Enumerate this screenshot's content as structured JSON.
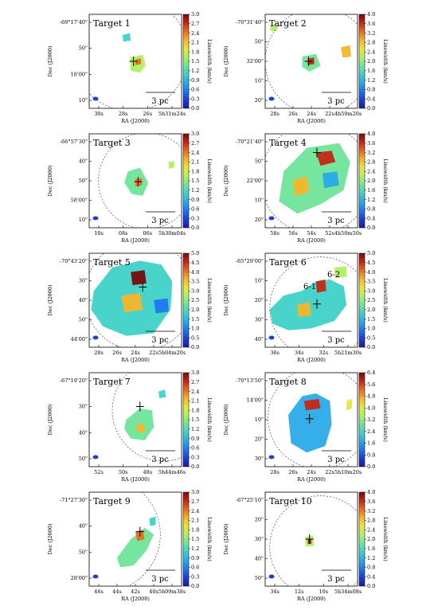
{
  "cbar_colors": [
    "#1b1b9c",
    "#1c3fd6",
    "#1e78ee",
    "#2aaae8",
    "#3fd2c8",
    "#6fe59a",
    "#aef066",
    "#e6e83c",
    "#f5b52a",
    "#ea6a20",
    "#c52616",
    "#7a0b0b"
  ],
  "panels": [
    {
      "title": "Target 1",
      "scale": "3 pc",
      "xlabel": "RA (J2000)",
      "ylabel": "Dec (J2000)",
      "cbar_label": "Linewidth (km/s)",
      "cbar_ticks": [
        "3.0",
        "2.7",
        "2.4",
        "2.1",
        "1.8",
        "1.5",
        "1.2",
        "0.9",
        "0.6",
        "0.3",
        "0.0"
      ],
      "xticks": [
        "30s",
        "28s",
        "26s",
        "5h31m24s"
      ],
      "yticks": [
        "-69°17'40\"",
        "50\"",
        "18'00\"",
        "10\""
      ]
    },
    {
      "title": "Target 2",
      "scale": "3 pc",
      "xlabel": "RA (J2000)",
      "ylabel": "Dec (J2000)",
      "cbar_label": "Linewidth (km/s)",
      "cbar_ticks": [
        "4.0",
        "3.6",
        "3.2",
        "2.8",
        "2.4",
        "2.0",
        "1.6",
        "1.2",
        "0.8",
        "0.4",
        "0.0"
      ],
      "xticks": [
        "28s",
        "26s",
        "24s",
        "22s",
        "4h59m20s"
      ],
      "yticks": [
        "-70°31'40\"",
        "50\"",
        "32'00\"",
        "10\"",
        "20\""
      ]
    },
    {
      "title": "Target 3",
      "scale": "3 pc",
      "xlabel": "RA (J2000)",
      "ylabel": "Dec (J2000)",
      "cbar_label": "Linewidth (km/s)",
      "cbar_ticks": [
        "3.0",
        "2.7",
        "2.4",
        "2.1",
        "1.8",
        "1.5",
        "1.2",
        "0.9",
        "0.6",
        "0.3",
        "0.0"
      ],
      "xticks": [
        "10s",
        "08s",
        "06s",
        "5h30m04s"
      ],
      "yticks": [
        "-66°57'30\"",
        "40\"",
        "50\"",
        "58'00\"",
        "10\""
      ]
    },
    {
      "title": "Target 4",
      "scale": "3 pc",
      "xlabel": "RA (J2000)",
      "ylabel": "Dec (J2000)",
      "cbar_label": "Linewidth (km/s)",
      "cbar_ticks": [
        "4.0",
        "3.6",
        "3.2",
        "2.8",
        "2.4",
        "2.0",
        "1.6",
        "1.2",
        "0.8",
        "0.4",
        "0.0"
      ],
      "xticks": [
        "58s",
        "56s",
        "54s",
        "52s",
        "4h50m50s"
      ],
      "yticks": [
        "-70°21'40\"",
        "50\"",
        "22'00\"",
        "10\"",
        "20\""
      ]
    },
    {
      "title": "Target 5",
      "scale": "3 pc",
      "xlabel": "RA (J2000)",
      "ylabel": "Dec (J2000)",
      "cbar_label": "Linewidth (km/s)",
      "cbar_ticks": [
        "5.0",
        "4.5",
        "4.0",
        "3.5",
        "3.0",
        "2.5",
        "2.0",
        "1.5",
        "1.0",
        "0.5",
        "0.0"
      ],
      "xticks": [
        "28s",
        "26s",
        "24s",
        "22s",
        "5h04m20s"
      ],
      "yticks": [
        "-70°43'20\"",
        "30\"",
        "40\"",
        "50\"",
        "44'00\""
      ]
    },
    {
      "title": "Target 6",
      "scale": "3 pc",
      "xlabel": "RA (J2000)",
      "ylabel": "Dec (J2000)",
      "cbar_label": "Linewidth (km/s)",
      "cbar_ticks": [
        "5.0",
        "4.5",
        "4.0",
        "3.5",
        "3.0",
        "2.5",
        "2.0",
        "1.5",
        "1.0",
        "0.5",
        "0.0"
      ],
      "xticks": [
        "36s",
        "34s",
        "32s",
        "5h21m30s"
      ],
      "yticks": [
        "-65°29'00\"",
        "10\"",
        "20\"",
        "30\"",
        "40\""
      ],
      "labels": [
        "6-1",
        "6-2"
      ]
    },
    {
      "title": "Target 7",
      "scale": "3 pc",
      "xlabel": "RA (J2000)",
      "ylabel": "Dec (J2000)",
      "cbar_label": "Linewidth (km/s)",
      "cbar_ticks": [
        "3.0",
        "2.7",
        "2.4",
        "2.1",
        "1.8",
        "1.5",
        "1.2",
        "0.9",
        "0.6",
        "0.3",
        "0.0"
      ],
      "xticks": [
        "52s",
        "50s",
        "48s",
        "5h44m46s"
      ],
      "yticks": [
        "-67°19'20\"",
        "30\"",
        "40\"",
        "50\""
      ]
    },
    {
      "title": "Target 8",
      "scale": "3 pc",
      "xlabel": "RA (J2000)",
      "ylabel": "Dec (J2000)",
      "cbar_label": "Linewidth (km/s)",
      "cbar_ticks": [
        "6.4",
        "5.6",
        "4.8",
        "4.0",
        "3.2",
        "2.4",
        "1.6",
        "0.8",
        "0.0"
      ],
      "xticks": [
        "28s",
        "26s",
        "24s",
        "22s",
        "5h10m20s"
      ],
      "yticks": [
        "-70°13'50\"",
        "14'00\"",
        "10\"",
        "20\"",
        "30\""
      ]
    },
    {
      "title": "Target 9",
      "scale": "3 pc",
      "xlabel": "RA (J2000)",
      "ylabel": "Dec (J2000)",
      "cbar_label": "Linewidth (km/s)",
      "cbar_ticks": [
        "3.0",
        "2.7",
        "2.4",
        "2.1",
        "1.8",
        "1.5",
        "1.2",
        "0.9",
        "0.6",
        "0.3",
        "0.0"
      ],
      "xticks": [
        "46s",
        "44s",
        "42s",
        "40s",
        "5h09m38s"
      ],
      "yticks": [
        "-71°27'30\"",
        "40\"",
        "50\"",
        "28'00\""
      ]
    },
    {
      "title": "Target 10",
      "scale": "3 pc",
      "xlabel": "RA (J2000)",
      "ylabel": "Dec (J2000)",
      "cbar_label": "Linewidth (km/s)",
      "cbar_ticks": [
        "4.0",
        "3.6",
        "3.2",
        "2.8",
        "2.4",
        "2.0",
        "1.6",
        "1.2",
        "0.8",
        "0.4",
        "0.0"
      ],
      "xticks": [
        "34s",
        "12s",
        "10s",
        "5h34m08s"
      ],
      "yticks": [
        "-67°25'10\"",
        "20\"",
        "30\"",
        "40\"",
        "50\""
      ]
    }
  ]
}
